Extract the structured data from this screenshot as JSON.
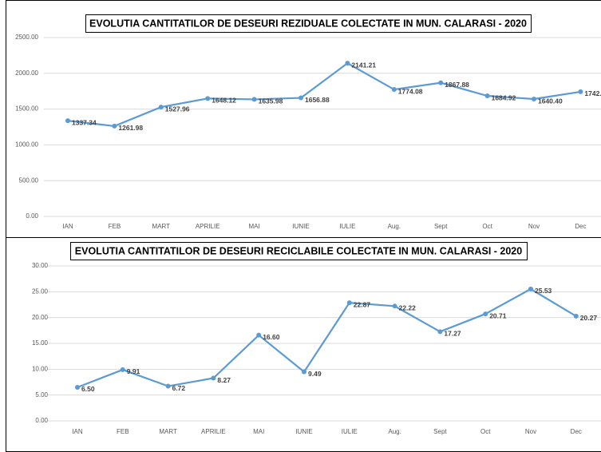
{
  "chart_data": [
    {
      "type": "line",
      "title": "EVOLUTIA CANTITATILOR DE DESEURI REZIDUALE COLECTATE IN MUN. CALARASI - 2020",
      "categories": [
        "IAN",
        "FEB",
        "MART",
        "APRILIE",
        "MAI",
        "IUNIE",
        "IULIE",
        "Aug.",
        "Sept",
        "Oct",
        "Nov",
        "Dec"
      ],
      "values": [
        1337.34,
        1261.98,
        1527.96,
        1648.12,
        1635.98,
        1656.88,
        2141.21,
        1774.08,
        1867.88,
        1684.92,
        1640.4,
        1742
      ],
      "value_labels": [
        "1337.34",
        "1261.98",
        "1527.96",
        "1648.12",
        "1635.98",
        "1656.88",
        "2141.21",
        "1774.08",
        "1867.88",
        "1684.92",
        "1640.40",
        "1742."
      ],
      "color": "#5b9bd5",
      "ylim": [
        0,
        2500
      ],
      "yticks": [
        {
          "value": 0,
          "label": "0.00"
        },
        {
          "value": 500,
          "label": "500.00"
        },
        {
          "value": 1000,
          "label": "1000.00"
        },
        {
          "value": 1500,
          "label": "1500.00"
        },
        {
          "value": 2000,
          "label": "2000.00"
        },
        {
          "value": 2500,
          "label": "2500.00"
        }
      ],
      "grid": true
    },
    {
      "type": "line",
      "title": "EVOLUTIA CANTITATILOR DE DESEURI RECICLABILE COLECTATE IN MUN. CALARASI - 2020",
      "categories": [
        "IAN",
        "FEB",
        "MART",
        "APRILIE",
        "MAI",
        "IUNIE",
        "IULIE",
        "Aug.",
        "Sept",
        "Oct",
        "Nov",
        "Dec"
      ],
      "values": [
        6.5,
        9.91,
        6.72,
        8.27,
        16.6,
        9.49,
        22.87,
        22.22,
        17.27,
        20.71,
        25.53,
        20.27
      ],
      "value_labels": [
        "6.50",
        "9.91",
        "6.72",
        "8.27",
        "16.60",
        "9.49",
        "22.87",
        "22.22",
        "17.27",
        "20.71",
        "25.53",
        "20.27"
      ],
      "color": "#5b9bd5",
      "ylim": [
        0,
        30
      ],
      "yticks": [
        {
          "value": 0,
          "label": "0.00"
        },
        {
          "value": 5,
          "label": "5.00"
        },
        {
          "value": 10,
          "label": "10.00"
        },
        {
          "value": 15,
          "label": "15.00"
        },
        {
          "value": 20,
          "label": "20.00"
        },
        {
          "value": 25,
          "label": "25.00"
        },
        {
          "value": 30,
          "label": "30.00"
        }
      ],
      "grid": true
    }
  ]
}
